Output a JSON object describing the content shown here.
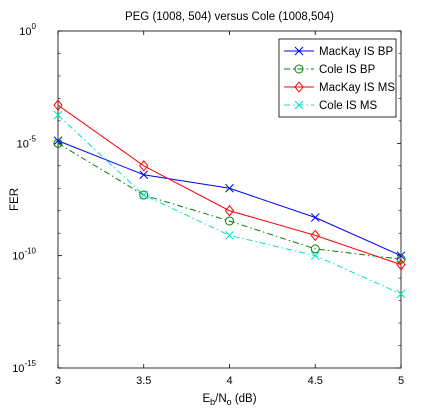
{
  "chart_data": {
    "type": "line",
    "title": "PEG (1008, 504) versus Cole (1008,504)",
    "xlabel": {
      "base": "E",
      "sub1": "b",
      "mid": "/N",
      "sub2": "o",
      "tail": " (dB)"
    },
    "ylabel": "FER",
    "xlim": [
      3,
      5
    ],
    "ylim_log10": [
      -15,
      0
    ],
    "yscale": "log",
    "grid": false,
    "legend_position": "top-right",
    "x_ticks": [
      "3",
      "3.5",
      "4",
      "4.5",
      "5"
    ],
    "y_ticks": [
      {
        "base": "10",
        "exp": "0"
      },
      {
        "base": "10",
        "exp": "-5"
      },
      {
        "base": "10",
        "exp": "-10"
      },
      {
        "base": "10",
        "exp": "-15"
      }
    ],
    "x": [
      3,
      3.5,
      4,
      4.5,
      5
    ],
    "series": [
      {
        "name": "MacKay IS BP",
        "color": "#0000ff",
        "marker": "x",
        "line": "solid",
        "values": [
          1.3e-05,
          4e-07,
          1e-07,
          5e-09,
          1e-10
        ]
      },
      {
        "name": "Cole IS BP",
        "color": "#008000",
        "marker": "o",
        "line": "dashdot",
        "values": [
          1e-05,
          5e-08,
          3.5e-09,
          2e-10,
          7e-11
        ]
      },
      {
        "name": "MacKay IS MS",
        "color": "#ff0000",
        "marker": "diamond",
        "line": "solid",
        "values": [
          0.0005,
          1e-06,
          1e-08,
          8e-10,
          4e-11
        ]
      },
      {
        "name": "Cole IS MS",
        "color": "#00e5c8",
        "marker": "x",
        "line": "dashdot",
        "values": [
          0.00018,
          5e-08,
          8e-10,
          1e-10,
          2e-12
        ]
      }
    ]
  }
}
